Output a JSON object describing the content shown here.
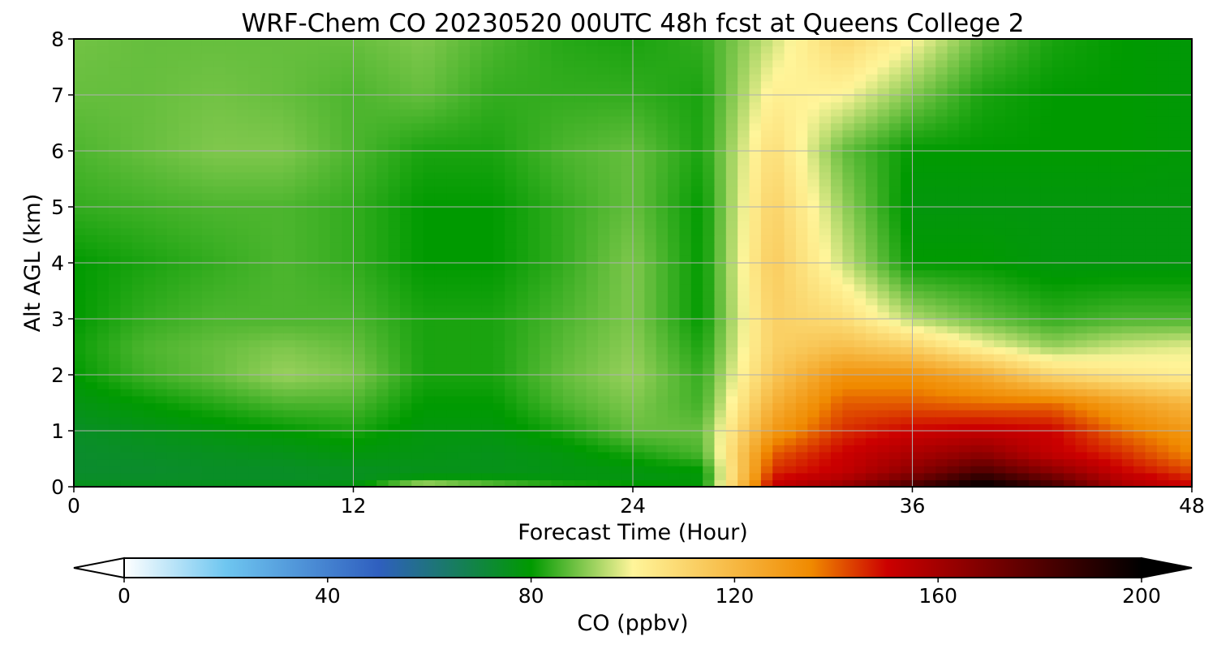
{
  "chart_data": {
    "type": "heatmap",
    "title": "WRF-Chem CO  20230520 00UTC 48h fcst at Queens College 2",
    "xlabel": "Forecast Time (Hour)",
    "ylabel": "Alt AGL (km)",
    "xlim": [
      0,
      48
    ],
    "ylim": [
      0,
      8
    ],
    "xticks": [
      0,
      12,
      24,
      36,
      48
    ],
    "yticks": [
      0,
      1,
      2,
      3,
      4,
      5,
      6,
      7,
      8
    ],
    "grid": true,
    "x": [
      0,
      3,
      6,
      9,
      12,
      15,
      18,
      21,
      24,
      27,
      30,
      33,
      36,
      39,
      42,
      45,
      48
    ],
    "y": [
      0,
      0.1,
      0.3,
      0.6,
      1,
      1.5,
      2,
      2.5,
      3,
      4,
      5,
      6,
      7,
      8
    ],
    "z": [
      [
        78,
        78,
        78,
        79,
        80,
        110,
        95,
        88,
        85,
        82,
        152,
        165,
        185,
        200,
        185,
        158,
        150
      ],
      [
        74,
        74,
        74,
        74,
        75,
        80,
        80,
        78,
        77,
        78,
        150,
        158,
        175,
        195,
        178,
        156,
        148
      ],
      [
        73,
        73,
        74,
        74,
        75,
        76,
        76,
        77,
        78,
        80,
        145,
        152,
        165,
        180,
        165,
        150,
        142
      ],
      [
        73,
        74,
        75,
        76,
        78,
        77,
        76,
        78,
        82,
        86,
        140,
        150,
        158,
        165,
        152,
        145,
        135
      ],
      [
        74,
        76,
        78,
        80,
        82,
        78,
        78,
        82,
        88,
        88,
        130,
        145,
        150,
        152,
        150,
        138,
        130
      ],
      [
        77,
        80,
        83,
        86,
        86,
        80,
        80,
        86,
        90,
        85,
        122,
        140,
        140,
        138,
        138,
        128,
        120
      ],
      [
        80,
        85,
        88,
        92,
        90,
        82,
        82,
        88,
        92,
        84,
        115,
        132,
        132,
        124,
        110,
        105,
        102
      ],
      [
        81,
        86,
        88,
        90,
        88,
        82,
        82,
        87,
        91,
        82,
        112,
        118,
        112,
        100,
        92,
        96,
        98
      ],
      [
        80,
        84,
        86,
        86,
        86,
        82,
        82,
        86,
        90,
        80,
        112,
        108,
        94,
        88,
        84,
        86,
        86
      ],
      [
        80,
        82,
        84,
        86,
        84,
        80,
        80,
        84,
        90,
        80,
        114,
        96,
        80,
        80,
        78,
        78,
        78
      ],
      [
        84,
        85,
        86,
        86,
        84,
        80,
        80,
        84,
        88,
        80,
        112,
        92,
        78,
        78,
        78,
        78,
        78
      ],
      [
        86,
        88,
        90,
        90,
        86,
        82,
        82,
        86,
        88,
        82,
        108,
        88,
        80,
        80,
        80,
        80,
        79
      ],
      [
        88,
        88,
        89,
        88,
        86,
        88,
        84,
        84,
        84,
        82,
        102,
        100,
        90,
        82,
        80,
        80,
        79
      ],
      [
        89,
        88,
        88,
        88,
        88,
        90,
        86,
        83,
        82,
        84,
        96,
        110,
        100,
        88,
        82,
        80,
        79
      ]
    ],
    "colorbar": {
      "label": "CO  (ppbv)",
      "ticks": [
        0,
        40,
        80,
        120,
        160,
        200
      ],
      "min": 0,
      "max": 200,
      "extend": "both",
      "stops": [
        {
          "v": 0,
          "c": "#ffffff"
        },
        {
          "v": 20,
          "c": "#6ec6f0"
        },
        {
          "v": 50,
          "c": "#2f5fbf"
        },
        {
          "v": 80,
          "c": "#009a00"
        },
        {
          "v": 100,
          "c": "#fff59a"
        },
        {
          "v": 135,
          "c": "#f08a00"
        },
        {
          "v": 150,
          "c": "#cc0000"
        },
        {
          "v": 200,
          "c": "#000000"
        }
      ]
    }
  }
}
